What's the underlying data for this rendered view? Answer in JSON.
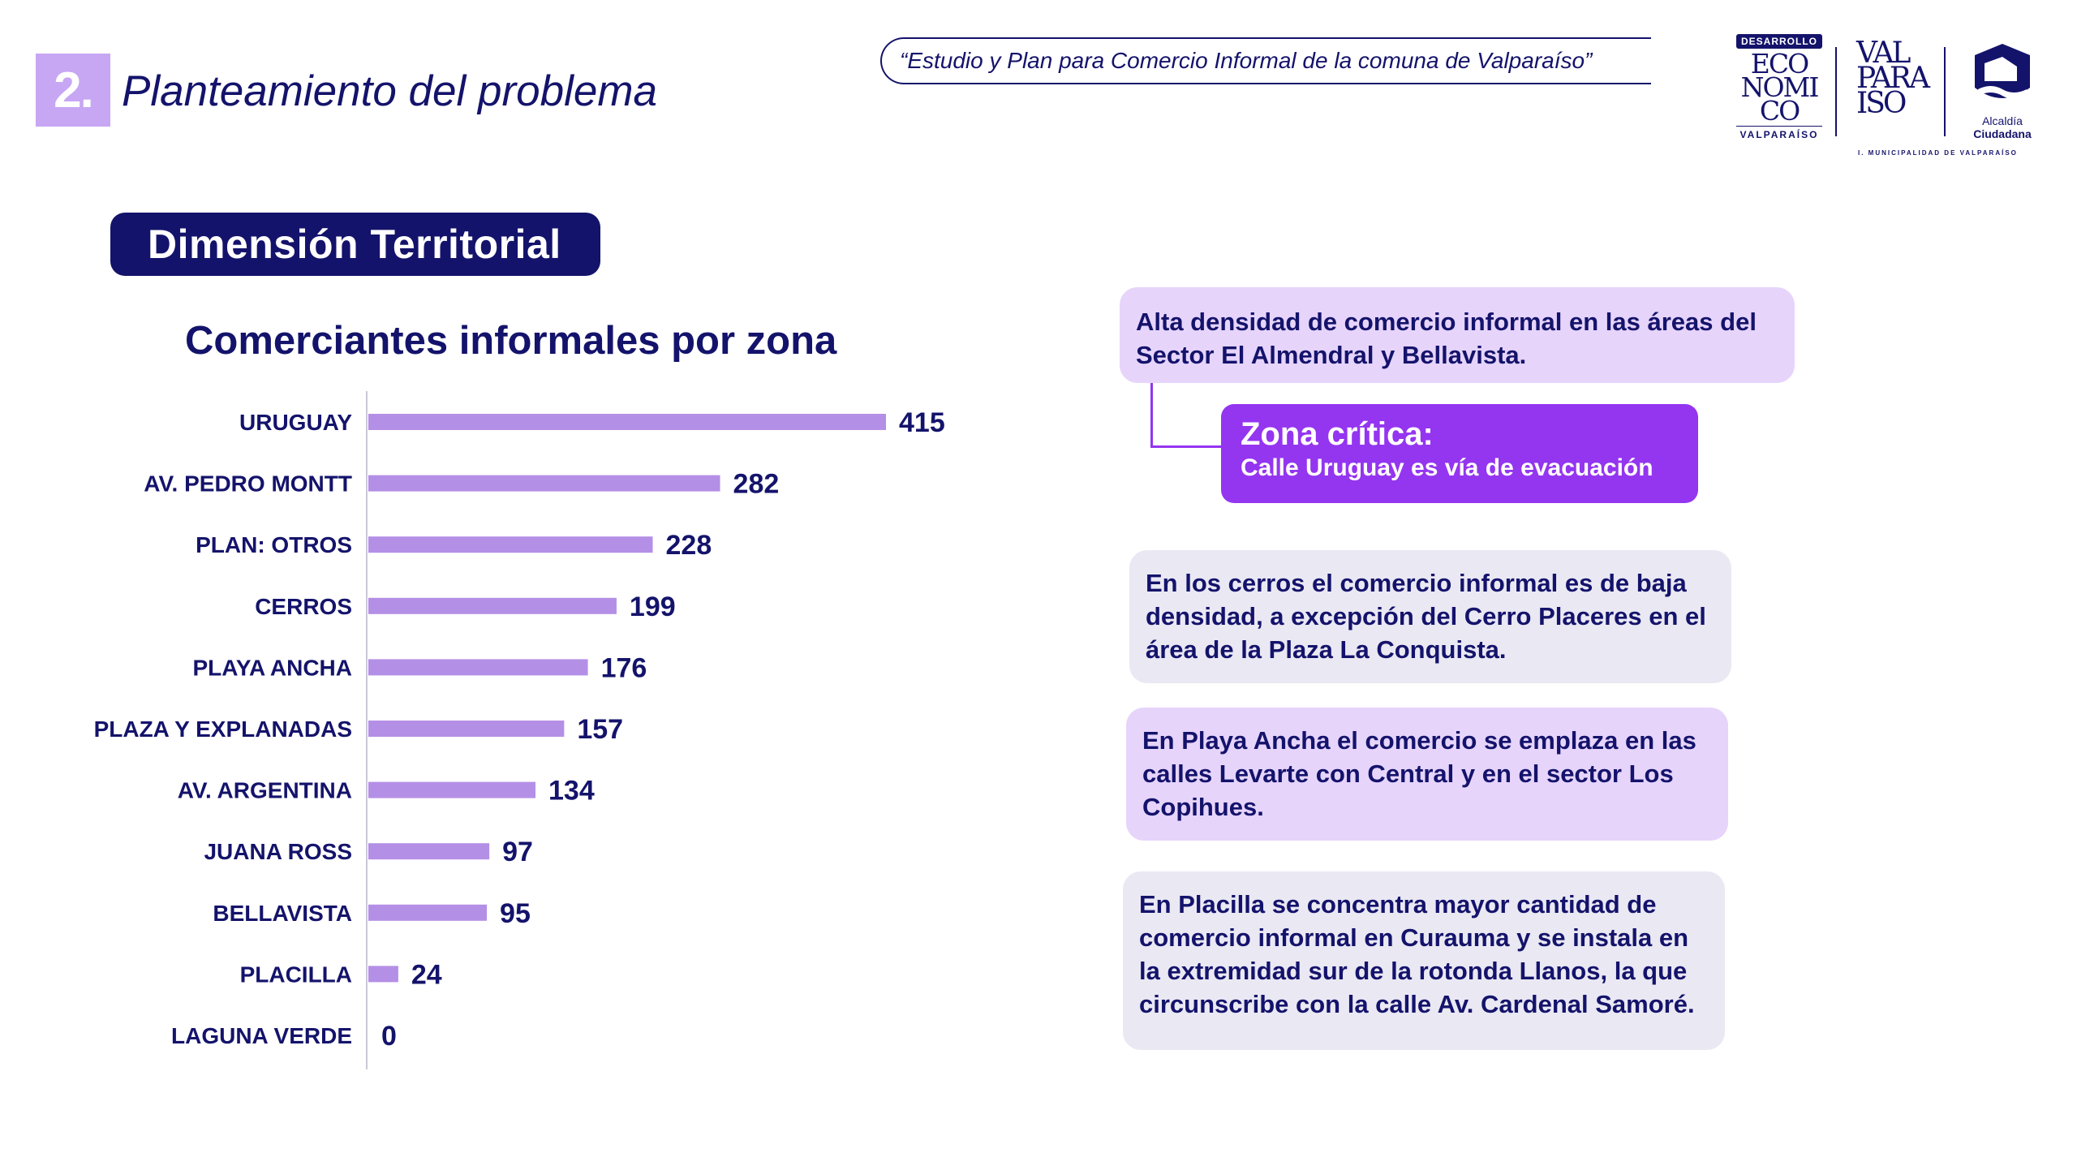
{
  "header": {
    "section_number": "2.",
    "section_title": "Planteamiento del problema",
    "study_title": "“Estudio y Plan para Comercio Informal de la comuna de Valparaíso”"
  },
  "logos": {
    "desarrollo_tag": "DESARROLLO",
    "economico_lines": [
      "ECO",
      "NOMI",
      "CO"
    ],
    "economico_city": "VALPARAÍSO",
    "valparaiso_lines": [
      "VAL",
      "PARA",
      "ISO"
    ],
    "alcaldia_line1": "Alcaldía",
    "alcaldia_line2": "Ciudadana",
    "municipalidad": "I. MUNICIPALIDAD DE VALPARAÍSO"
  },
  "dimension_label": "Dimensión  Territorial",
  "chart_data": {
    "type": "bar",
    "orientation": "horizontal",
    "title": "Comerciantes informales por zona",
    "categories": [
      "URUGUAY",
      "AV. PEDRO MONTT",
      "PLAN: OTROS",
      "CERROS",
      "PLAYA ANCHA",
      "PLAZA Y EXPLANADAS",
      "AV. ARGENTINA",
      "JUANA ROSS",
      "BELLAVISTA",
      "PLACILLA",
      "LAGUNA VERDE"
    ],
    "values": [
      415,
      282,
      228,
      199,
      176,
      157,
      134,
      97,
      95,
      24,
      0
    ],
    "xlim": [
      0,
      415
    ],
    "bar_color": "#b48fe6",
    "label_color": "#14136b",
    "grid": false
  },
  "callouts": {
    "density": "Alta densidad de comercio informal en las áreas del Sector El Almendral y Bellavista.",
    "critical_title": "Zona crítica:",
    "critical_text": "Calle Uruguay es vía de evacuación",
    "cerros": "En los cerros el comercio informal es de baja densidad, a excepción del Cerro Placeres en el área de la Plaza La Conquista.",
    "playa_ancha": "En Playa Ancha el comercio se emplaza en las calles Levarte con Central y en el sector Los Copihues.",
    "placilla": "En Placilla se concentra mayor cantidad de comercio informal en Curauma y se instala en la extremidad sur de la rotonda Llanos, la que circunscribe con la calle Av. Cardenal Samoré."
  },
  "colors": {
    "navy": "#14136b",
    "lavender": "#c7a6f4",
    "purple": "#9435f0",
    "light_purple": "#e6d4fb",
    "light_gray": "#eae8f3"
  }
}
